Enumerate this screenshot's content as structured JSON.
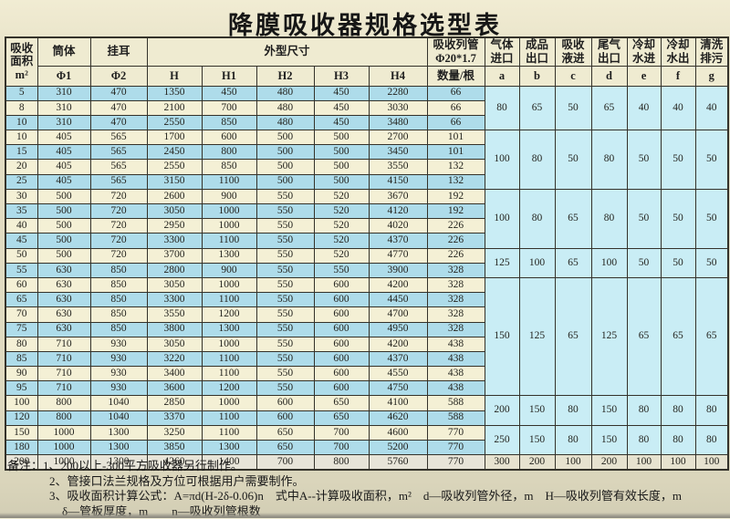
{
  "title": "降膜吸收器规格选型表",
  "colors": {
    "row_blue": "#aedcea",
    "row_cream": "#f4f0d5",
    "row_last": "#e7e4d8",
    "port_band": "#c9edf5",
    "header_bg": "#efebd1",
    "border": "#34322a"
  },
  "table": {
    "header": {
      "area": "吸收\n面积\nm²",
      "body": "筒体",
      "body_sub": "Φ1",
      "ear": "挂耳",
      "ear_sub": "Φ2",
      "dims": "外型尺寸",
      "dim_subs": [
        "H",
        "H1",
        "H2",
        "H3",
        "H4"
      ],
      "tubes": "吸收列管\nΦ20*1.7",
      "tubes_sub": "数量/根",
      "ports": [
        "气体\n进口",
        "成品\n出口",
        "吸收\n液进",
        "尾气\n出口",
        "冷却\n水进",
        "冷却\n水出",
        "清洗\n排污"
      ],
      "port_subs": [
        "a",
        "b",
        "c",
        "d",
        "e",
        "f",
        "g"
      ]
    },
    "col_keys": [
      "area",
      "phi1",
      "phi2",
      "h",
      "h1",
      "h2",
      "h3",
      "h4",
      "qty"
    ],
    "rows": [
      [
        5,
        310,
        470,
        1350,
        450,
        480,
        450,
        2280,
        66
      ],
      [
        8,
        310,
        470,
        2100,
        700,
        480,
        450,
        3030,
        66
      ],
      [
        10,
        310,
        470,
        2550,
        850,
        480,
        450,
        3480,
        66
      ],
      [
        10,
        405,
        565,
        1700,
        600,
        500,
        500,
        2700,
        101
      ],
      [
        15,
        405,
        565,
        2450,
        800,
        500,
        500,
        3450,
        101
      ],
      [
        20,
        405,
        565,
        2550,
        850,
        500,
        500,
        3550,
        132
      ],
      [
        25,
        405,
        565,
        3150,
        1100,
        500,
        500,
        4150,
        132
      ],
      [
        30,
        500,
        720,
        2600,
        900,
        550,
        520,
        3670,
        192
      ],
      [
        35,
        500,
        720,
        3050,
        1000,
        550,
        520,
        4120,
        192
      ],
      [
        40,
        500,
        720,
        2950,
        1000,
        550,
        520,
        4020,
        226
      ],
      [
        45,
        500,
        720,
        3300,
        1100,
        550,
        520,
        4370,
        226
      ],
      [
        50,
        500,
        720,
        3700,
        1300,
        550,
        520,
        4770,
        226
      ],
      [
        55,
        630,
        850,
        2800,
        900,
        550,
        550,
        3900,
        328
      ],
      [
        60,
        630,
        850,
        3050,
        1000,
        550,
        600,
        4200,
        328
      ],
      [
        65,
        630,
        850,
        3300,
        1100,
        550,
        600,
        4450,
        328
      ],
      [
        70,
        630,
        850,
        3550,
        1200,
        550,
        600,
        4700,
        328
      ],
      [
        75,
        630,
        850,
        3800,
        1300,
        550,
        600,
        4950,
        328
      ],
      [
        80,
        710,
        930,
        3050,
        1000,
        550,
        600,
        4200,
        438
      ],
      [
        85,
        710,
        930,
        3220,
        1100,
        550,
        600,
        4370,
        438
      ],
      [
        90,
        710,
        930,
        3400,
        1100,
        550,
        600,
        4550,
        438
      ],
      [
        95,
        710,
        930,
        3600,
        1200,
        550,
        600,
        4750,
        438
      ],
      [
        100,
        800,
        1040,
        2850,
        1000,
        600,
        650,
        4100,
        588
      ],
      [
        120,
        800,
        1040,
        3370,
        1100,
        600,
        650,
        4620,
        588
      ],
      [
        150,
        1000,
        1300,
        3250,
        1100,
        650,
        700,
        4600,
        770
      ],
      [
        180,
        1000,
        1300,
        3850,
        1300,
        650,
        700,
        5200,
        770
      ],
      [
        200,
        1000,
        1300,
        4260,
        1400,
        700,
        800,
        5760,
        770
      ]
    ],
    "port_groups": [
      {
        "start": 0,
        "span": 3,
        "values": [
          80,
          65,
          50,
          65,
          40,
          40,
          40
        ]
      },
      {
        "start": 3,
        "span": 4,
        "values": [
          100,
          80,
          50,
          80,
          50,
          50,
          50
        ]
      },
      {
        "start": 7,
        "span": 4,
        "values": [
          100,
          80,
          65,
          80,
          50,
          50,
          50
        ]
      },
      {
        "start": 11,
        "span": 2,
        "values": [
          125,
          100,
          65,
          100,
          50,
          50,
          50
        ]
      },
      {
        "start": 13,
        "span": 8,
        "values": [
          150,
          125,
          65,
          125,
          65,
          65,
          65
        ]
      },
      {
        "start": 21,
        "span": 2,
        "values": [
          200,
          150,
          80,
          150,
          80,
          80,
          80
        ]
      },
      {
        "start": 23,
        "span": 2,
        "values": [
          250,
          150,
          80,
          150,
          80,
          80,
          80
        ]
      },
      {
        "start": 25,
        "span": 1,
        "values": [
          300,
          200,
          100,
          200,
          100,
          100,
          100
        ]
      }
    ]
  },
  "notes": [
    "备注：1、200以上-300平方吸收器另行制作。",
    "2、管接口法兰规格及方位可根据用户需要制作。",
    "3、吸收面积计算公式：A=πd(H-2δ-0.06)n　式中A--计算吸收面积，m²　d—吸收列管外径，m　H—吸收列管有效长度，m",
    "δ—管板厚度，m　　n—吸收列管根数"
  ]
}
